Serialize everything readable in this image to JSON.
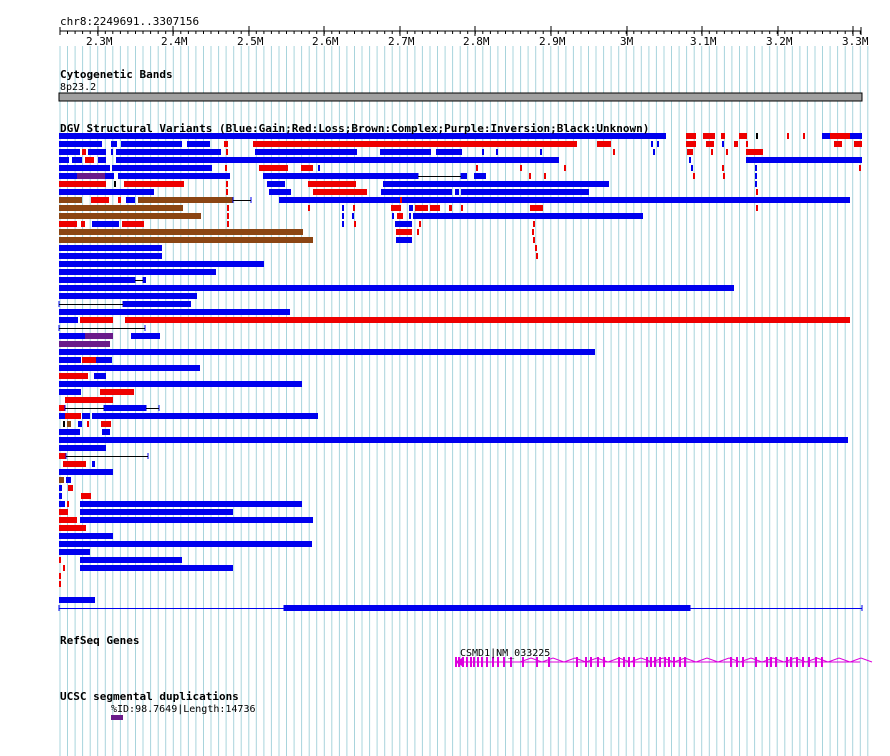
{
  "region": "chr8:2249691..3307156",
  "ruler": {
    "ticks": [
      "2.3M",
      "2.4M",
      "2.5M",
      "2.6M",
      "2.7M",
      "2.8M",
      "2.9M",
      "3M",
      "3.1M",
      "3.2M",
      "3.3M"
    ]
  },
  "tracks": {
    "cytobands": {
      "title": "Cytogenetic Bands",
      "band": "8p23.2"
    },
    "dgv": {
      "title": "DGV Structural Variants (Blue:Gain;Red:Loss;Brown:Complex;Purple:Inversion;Black:Unknown)"
    },
    "refseq": {
      "title": "RefSeq Genes",
      "gene": "CSMD1|NM_033225"
    },
    "segdups": {
      "title": "UCSC segmental duplications",
      "feature": "%ID:98.7649|Length:14736"
    }
  },
  "colors": {
    "gain": "#0000ee",
    "loss": "#ee0000",
    "complex": "#8b4513",
    "inversion": "#6a1b8a",
    "unknown": "#000000",
    "gene": "#dd00dd",
    "grid": "#a8d4dc"
  }
}
